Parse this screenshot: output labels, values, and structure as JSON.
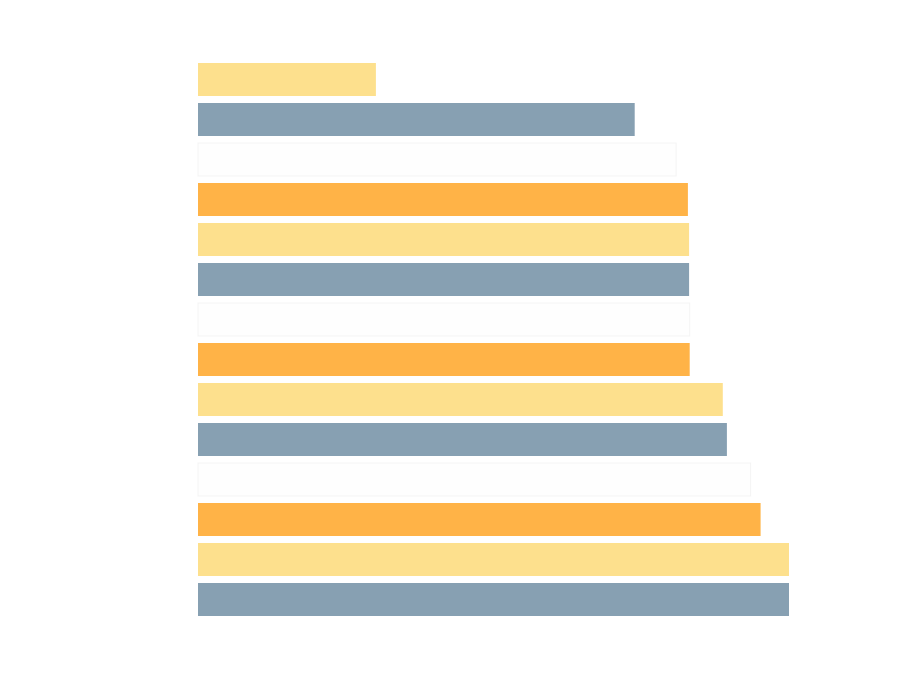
{
  "chart_data": {
    "type": "bar",
    "orientation": "horizontal",
    "title": "",
    "xlabel": "",
    "ylabel": "",
    "xlim": [
      0,
      100
    ],
    "grid": false,
    "legend": "none",
    "palette": [
      "#fde08d",
      "#87a0b2",
      "#fefefe",
      "#ffb347"
    ],
    "bars": [
      {
        "value": 30.1,
        "color": "#fde08d"
      },
      {
        "value": 73.9,
        "color": "#87a0b2"
      },
      {
        "value": 80.9,
        "color": "#fefefe"
      },
      {
        "value": 82.9,
        "color": "#ffb347"
      },
      {
        "value": 83.1,
        "color": "#fde08d"
      },
      {
        "value": 83.1,
        "color": "#87a0b2"
      },
      {
        "value": 83.2,
        "color": "#fefefe"
      },
      {
        "value": 83.2,
        "color": "#ffb347"
      },
      {
        "value": 88.8,
        "color": "#fde08d"
      },
      {
        "value": 89.5,
        "color": "#87a0b2"
      },
      {
        "value": 93.5,
        "color": "#fefefe"
      },
      {
        "value": 95.2,
        "color": "#ffb347"
      },
      {
        "value": 100,
        "color": "#fde08d"
      },
      {
        "value": 100,
        "color": "#87a0b2"
      }
    ]
  }
}
